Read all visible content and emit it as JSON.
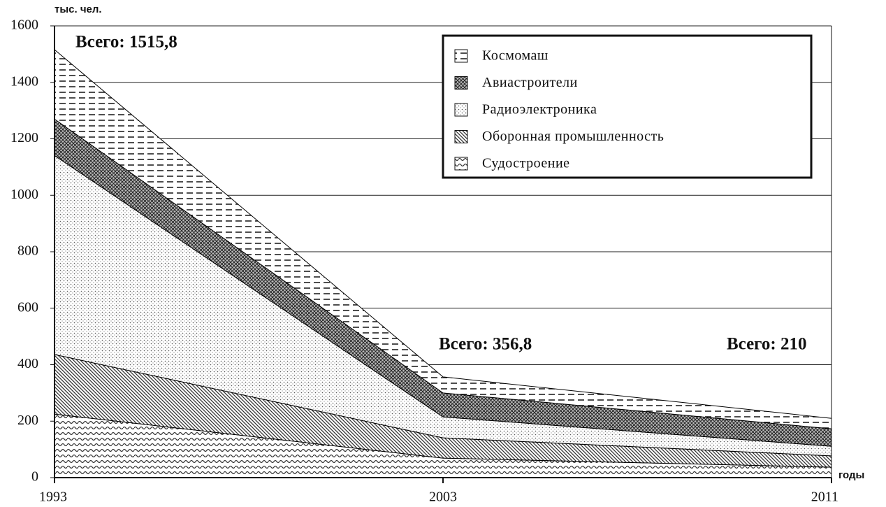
{
  "chart_data": {
    "type": "stacked_area",
    "y_label": "тыс. чел.",
    "x_label": "годы",
    "categories": [
      "1993",
      "2003",
      "2011"
    ],
    "series": [
      {
        "name": "Судостроение",
        "color": "#000000",
        "values": [
          225,
          69,
          37
        ]
      },
      {
        "name": "Оборонная промышленность",
        "color": "#000000",
        "values": [
          211,
          72,
          40
        ]
      },
      {
        "name": "Радиоэлектроника",
        "color": "#000000",
        "values": [
          705,
          74,
          34
        ]
      },
      {
        "name": "Авиастроители",
        "color": "#000000",
        "values": [
          129,
          85,
          62
        ]
      },
      {
        "name": "Космомаш",
        "color": "#000000",
        "values": [
          245.8,
          56.8,
          37
        ]
      }
    ],
    "annotations": [
      "Всего: 1515,8",
      "Всего: 356,8",
      "Всего: 210"
    ],
    "ylim": [
      0,
      1600
    ],
    "yticks": [
      0,
      200,
      400,
      600,
      800,
      1000,
      1200,
      1400,
      1600
    ],
    "grid": true,
    "legend": "upper right"
  }
}
